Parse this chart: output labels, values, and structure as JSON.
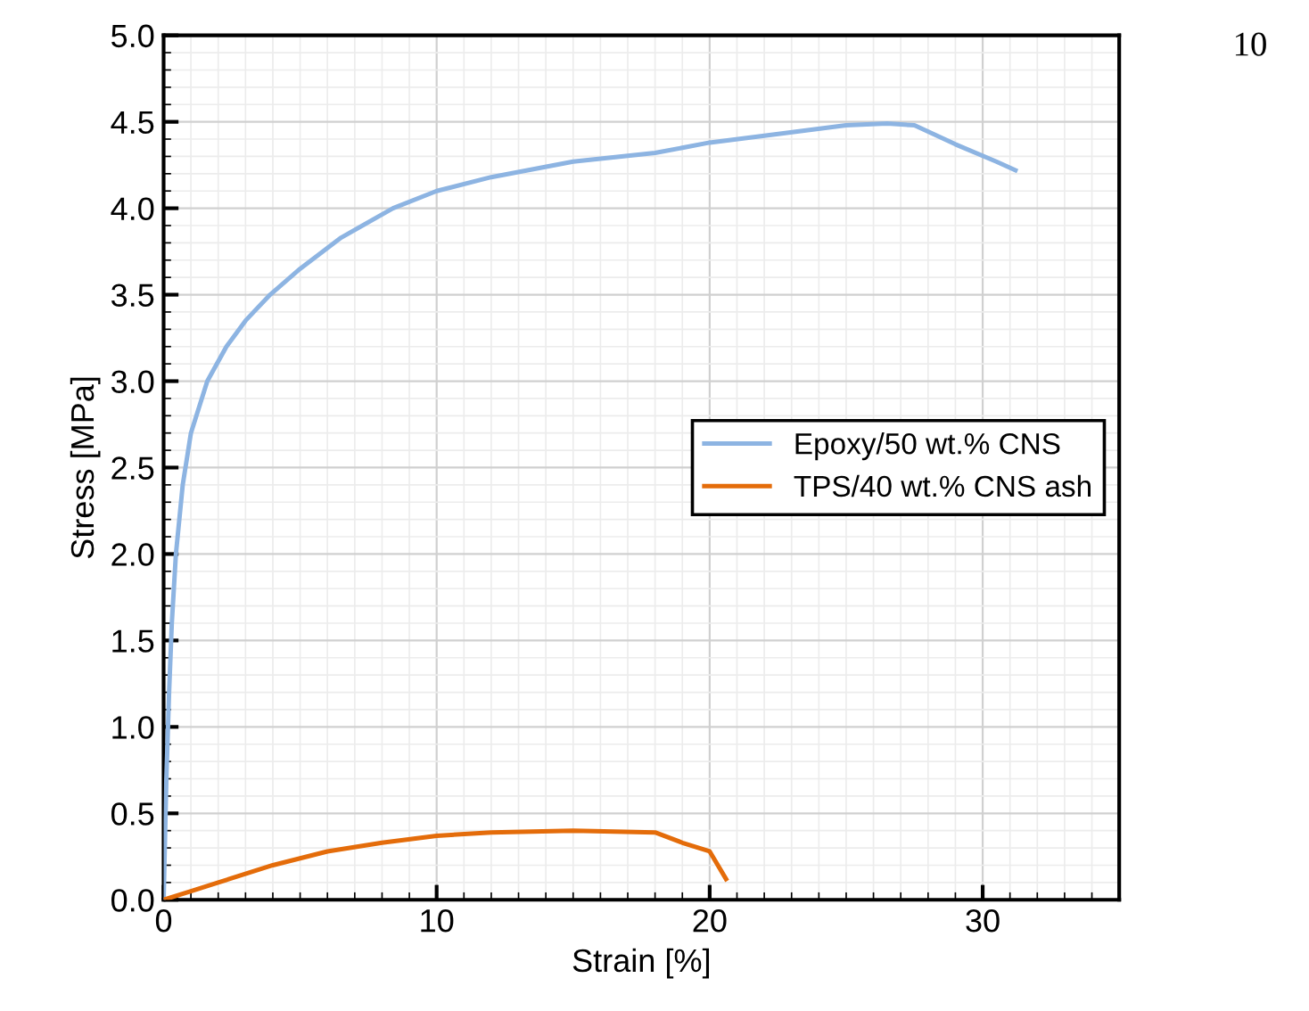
{
  "chart_data": {
    "type": "line",
    "xlabel": "Strain [%]",
    "ylabel": "Stress [MPa]",
    "xlim": [
      0,
      35
    ],
    "xticks": [
      0,
      10,
      20,
      30
    ],
    "ylim": [
      0,
      5.0
    ],
    "yticks": [
      {
        "value": 0,
        "label": "0.0"
      },
      {
        "value": 0.5,
        "label": "0.5"
      },
      {
        "value": 1.0,
        "label": "1.0"
      },
      {
        "value": 1.5,
        "label": "1.5"
      },
      {
        "value": 2.0,
        "label": "2.0"
      },
      {
        "value": 2.5,
        "label": "2.5"
      },
      {
        "value": 3.0,
        "label": "3.0"
      },
      {
        "value": 3.5,
        "label": "3.5"
      },
      {
        "value": 4.0,
        "label": "4.0"
      },
      {
        "value": 4.5,
        "label": "4.5"
      },
      {
        "value": 5.0,
        "label": "5.0"
      }
    ],
    "grid": true,
    "legend": "right",
    "marker": "none",
    "line_style": "solid",
    "annotations": [
      "10"
    ],
    "series": [
      {
        "name": "Epoxy/50 wt.% CNS",
        "color": "#8db4e2",
        "x": [
          0,
          0.1,
          0.2,
          0.3,
          0.45,
          0.7,
          1.0,
          1.6,
          2.3,
          3.0,
          3.9,
          5.0,
          6.5,
          8.4,
          10,
          12,
          15,
          18,
          20,
          22,
          25,
          26.5,
          27.5,
          29,
          30.5,
          31.2
        ],
        "values": [
          0,
          0.7,
          1.2,
          1.6,
          2.0,
          2.4,
          2.7,
          3.0,
          3.2,
          3.35,
          3.5,
          3.65,
          3.83,
          4.0,
          4.1,
          4.18,
          4.27,
          4.32,
          4.38,
          4.42,
          4.48,
          4.49,
          4.48,
          4.37,
          4.27,
          4.22
        ]
      },
      {
        "name": "TPS/40 wt.% CNS ash",
        "color": "#e46c0a",
        "x": [
          0,
          1,
          2,
          4,
          6,
          8,
          10,
          12,
          15,
          18,
          19,
          20,
          20.6
        ],
        "values": [
          0,
          0.05,
          0.1,
          0.2,
          0.28,
          0.33,
          0.37,
          0.39,
          0.4,
          0.39,
          0.33,
          0.28,
          0.12
        ]
      }
    ]
  }
}
